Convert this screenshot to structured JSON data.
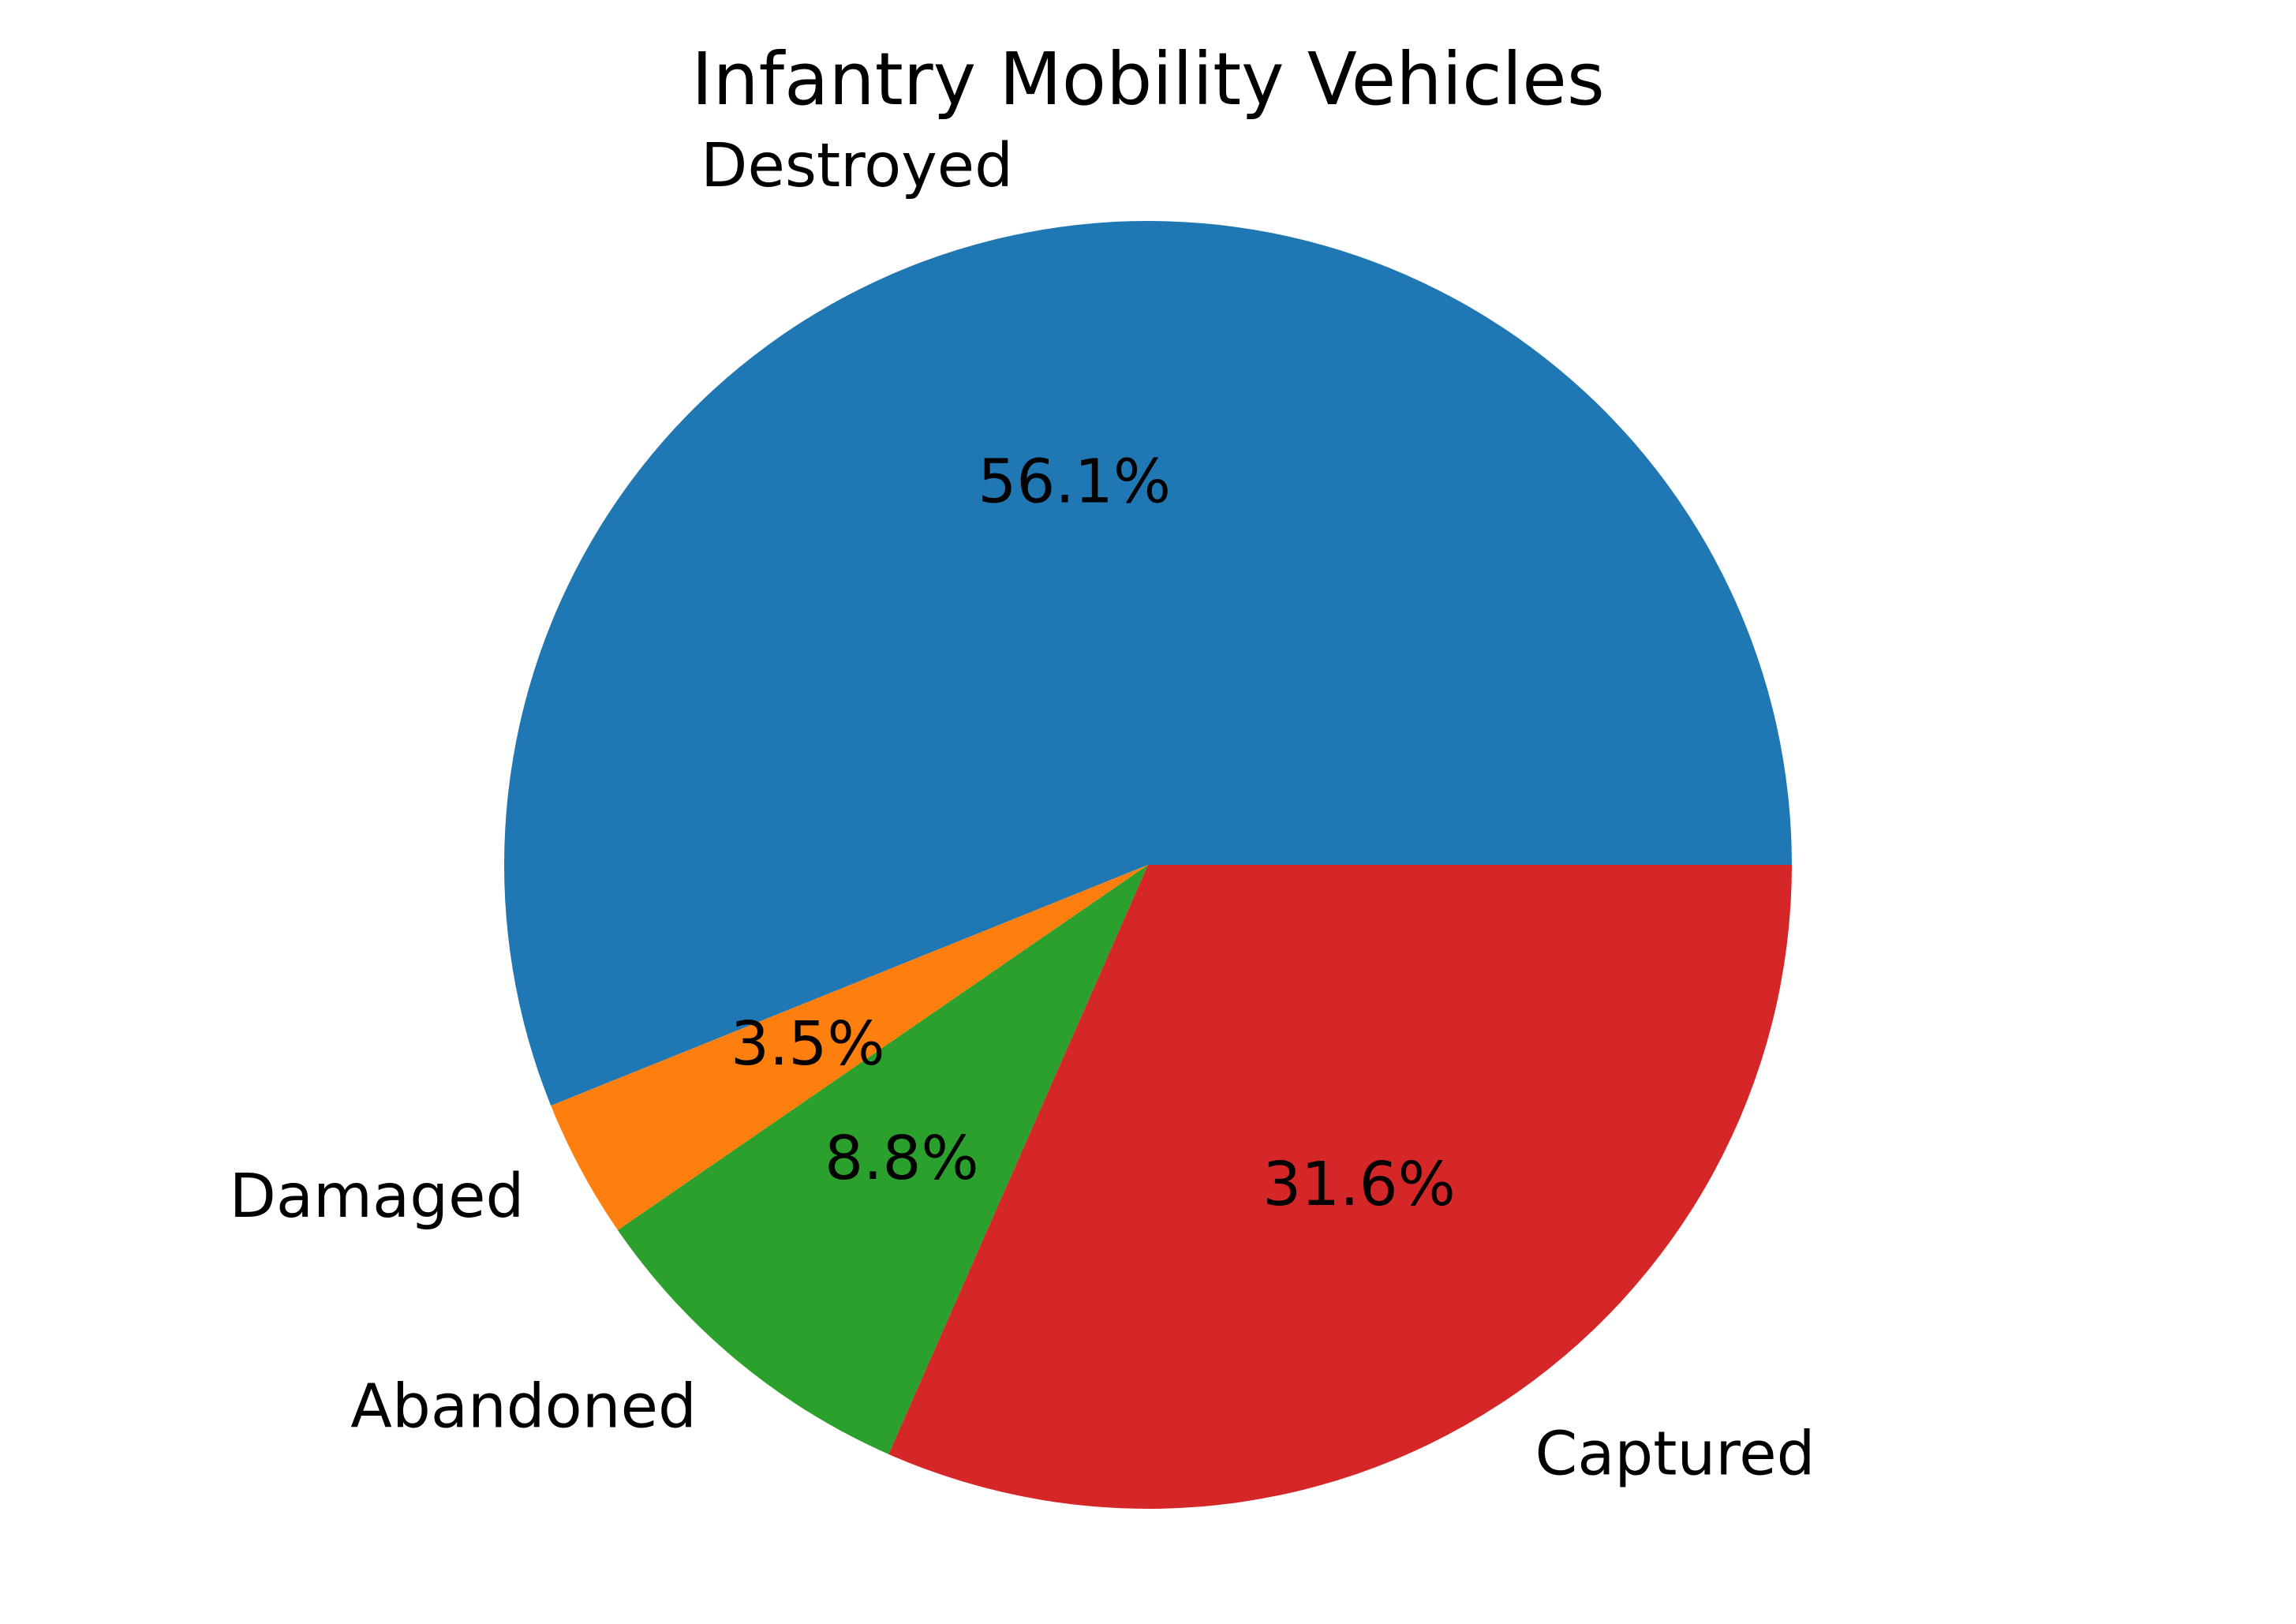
{
  "chart_data": {
    "type": "pie",
    "title": "Infantry Mobility Vehicles",
    "slices": [
      {
        "label": "Destroyed",
        "value": 56.1,
        "pct_label": "56.1%",
        "color": "#1f77b4"
      },
      {
        "label": "Damaged",
        "value": 3.5,
        "pct_label": "3.5%",
        "color": "#ff7f0e"
      },
      {
        "label": "Abandoned",
        "value": 8.8,
        "pct_label": "8.8%",
        "color": "#2ca02c"
      },
      {
        "label": "Captured",
        "value": 31.6,
        "pct_label": "31.6%",
        "color": "#d62728"
      }
    ],
    "start_angle_deg": 0,
    "direction": "counterclockwise"
  }
}
